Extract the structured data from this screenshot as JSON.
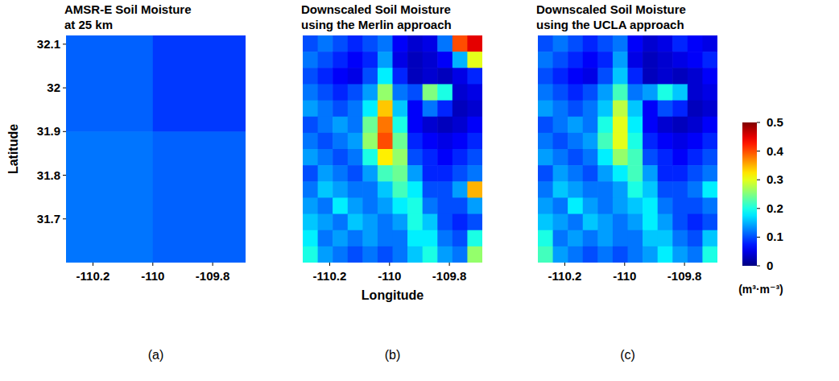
{
  "chart_data": [
    {
      "type": "heatmap",
      "title": "AMSR-E Soil Moisture\nat 25 km",
      "panel_label": "(a)",
      "ylabel": "Latitude",
      "xlim": [
        -110.29,
        -109.69
      ],
      "ylim": [
        31.6,
        32.12
      ],
      "xticks": [
        -110.2,
        -110,
        -109.8
      ],
      "yticks": [
        31.7,
        31.8,
        31.9,
        32,
        32.1
      ],
      "x_edges": [
        -110.29,
        -110.0,
        -109.69
      ],
      "y_edges": [
        32.12,
        31.9,
        31.6
      ],
      "cells": [
        [
          0.11,
          0.09
        ],
        [
          0.12,
          0.11
        ]
      ]
    },
    {
      "type": "heatmap",
      "title": "Downscaled Soil Moisture\nusing the Merlin approach",
      "panel_label": "(b)",
      "xlabel": "Longitude",
      "tick_labels": "x",
      "xlim": [
        -110.29,
        -109.69
      ],
      "ylim": [
        31.6,
        32.12
      ],
      "xticks": [
        -110.2,
        -110,
        -109.8
      ],
      "cells": [
        [
          0.1,
          0.12,
          0.1,
          0.08,
          0.1,
          0.12,
          0.06,
          0.04,
          0.05,
          0.12,
          0.4,
          0.45
        ],
        [
          0.12,
          0.1,
          0.08,
          0.06,
          0.08,
          0.14,
          0.05,
          0.03,
          0.04,
          0.06,
          0.15,
          0.3
        ],
        [
          0.1,
          0.08,
          0.06,
          0.05,
          0.1,
          0.18,
          0.08,
          0.03,
          0.04,
          0.03,
          0.05,
          0.08
        ],
        [
          0.12,
          0.1,
          0.08,
          0.1,
          0.14,
          0.26,
          0.12,
          0.1,
          0.25,
          0.2,
          0.04,
          0.05
        ],
        [
          0.14,
          0.12,
          0.1,
          0.12,
          0.18,
          0.34,
          0.16,
          0.06,
          0.12,
          0.08,
          0.03,
          0.04
        ],
        [
          0.1,
          0.12,
          0.14,
          0.12,
          0.24,
          0.38,
          0.2,
          0.06,
          0.04,
          0.03,
          0.04,
          0.06
        ],
        [
          0.12,
          0.1,
          0.12,
          0.14,
          0.26,
          0.4,
          0.24,
          0.08,
          0.06,
          0.05,
          0.06,
          0.08
        ],
        [
          0.14,
          0.12,
          0.1,
          0.12,
          0.2,
          0.32,
          0.26,
          0.1,
          0.08,
          0.06,
          0.08,
          0.1
        ],
        [
          0.1,
          0.14,
          0.12,
          0.1,
          0.14,
          0.22,
          0.24,
          0.14,
          0.08,
          0.08,
          0.1,
          0.12
        ],
        [
          0.12,
          0.16,
          0.14,
          0.12,
          0.12,
          0.16,
          0.22,
          0.18,
          0.1,
          0.1,
          0.14,
          0.35
        ],
        [
          0.14,
          0.12,
          0.18,
          0.14,
          0.12,
          0.14,
          0.18,
          0.2,
          0.12,
          0.1,
          0.1,
          0.14
        ],
        [
          0.16,
          0.14,
          0.12,
          0.16,
          0.14,
          0.12,
          0.14,
          0.2,
          0.16,
          0.1,
          0.08,
          0.1
        ],
        [
          0.18,
          0.12,
          0.14,
          0.12,
          0.14,
          0.12,
          0.12,
          0.18,
          0.18,
          0.12,
          0.1,
          0.2
        ],
        [
          0.2,
          0.14,
          0.12,
          0.1,
          0.12,
          0.1,
          0.12,
          0.16,
          0.2,
          0.14,
          0.12,
          0.26
        ]
      ]
    },
    {
      "type": "heatmap",
      "title": "Downscaled Soil Moisture\nusing the UCLA approach",
      "panel_label": "(c)",
      "tick_labels": "x",
      "xlim": [
        -110.29,
        -109.69
      ],
      "ylim": [
        31.6,
        32.12
      ],
      "xticks": [
        -110.2,
        -110,
        -109.8
      ],
      "cells": [
        [
          0.1,
          0.12,
          0.1,
          0.08,
          0.1,
          0.12,
          0.06,
          0.04,
          0.05,
          0.08,
          0.06,
          0.05
        ],
        [
          0.12,
          0.1,
          0.08,
          0.06,
          0.08,
          0.14,
          0.05,
          0.03,
          0.04,
          0.05,
          0.06,
          0.08
        ],
        [
          0.1,
          0.08,
          0.06,
          0.05,
          0.1,
          0.16,
          0.08,
          0.03,
          0.04,
          0.03,
          0.04,
          0.06
        ],
        [
          0.12,
          0.1,
          0.08,
          0.1,
          0.14,
          0.22,
          0.12,
          0.14,
          0.2,
          0.16,
          0.04,
          0.05
        ],
        [
          0.14,
          0.12,
          0.1,
          0.12,
          0.16,
          0.28,
          0.16,
          0.06,
          0.1,
          0.08,
          0.03,
          0.04
        ],
        [
          0.1,
          0.12,
          0.14,
          0.12,
          0.2,
          0.3,
          0.18,
          0.06,
          0.04,
          0.03,
          0.04,
          0.06
        ],
        [
          0.12,
          0.1,
          0.12,
          0.14,
          0.22,
          0.3,
          0.2,
          0.08,
          0.06,
          0.05,
          0.06,
          0.08
        ],
        [
          0.14,
          0.12,
          0.1,
          0.12,
          0.18,
          0.26,
          0.22,
          0.1,
          0.08,
          0.06,
          0.08,
          0.1
        ],
        [
          0.1,
          0.14,
          0.12,
          0.1,
          0.14,
          0.18,
          0.22,
          0.14,
          0.08,
          0.08,
          0.1,
          0.12
        ],
        [
          0.12,
          0.16,
          0.14,
          0.12,
          0.12,
          0.14,
          0.2,
          0.16,
          0.1,
          0.1,
          0.12,
          0.18
        ],
        [
          0.14,
          0.12,
          0.18,
          0.14,
          0.12,
          0.14,
          0.16,
          0.18,
          0.12,
          0.1,
          0.1,
          0.12
        ],
        [
          0.16,
          0.14,
          0.12,
          0.16,
          0.14,
          0.12,
          0.14,
          0.18,
          0.14,
          0.1,
          0.08,
          0.1
        ],
        [
          0.2,
          0.12,
          0.14,
          0.12,
          0.14,
          0.12,
          0.12,
          0.16,
          0.16,
          0.12,
          0.1,
          0.16
        ],
        [
          0.22,
          0.14,
          0.12,
          0.1,
          0.12,
          0.1,
          0.12,
          0.14,
          0.18,
          0.14,
          0.12,
          0.2
        ]
      ],
      "colorbar": {
        "range": [
          0,
          0.5
        ],
        "ticks": [
          0,
          0.1,
          0.2,
          0.3,
          0.4,
          0.5
        ],
        "label": "(m³·m⁻³)"
      }
    }
  ]
}
